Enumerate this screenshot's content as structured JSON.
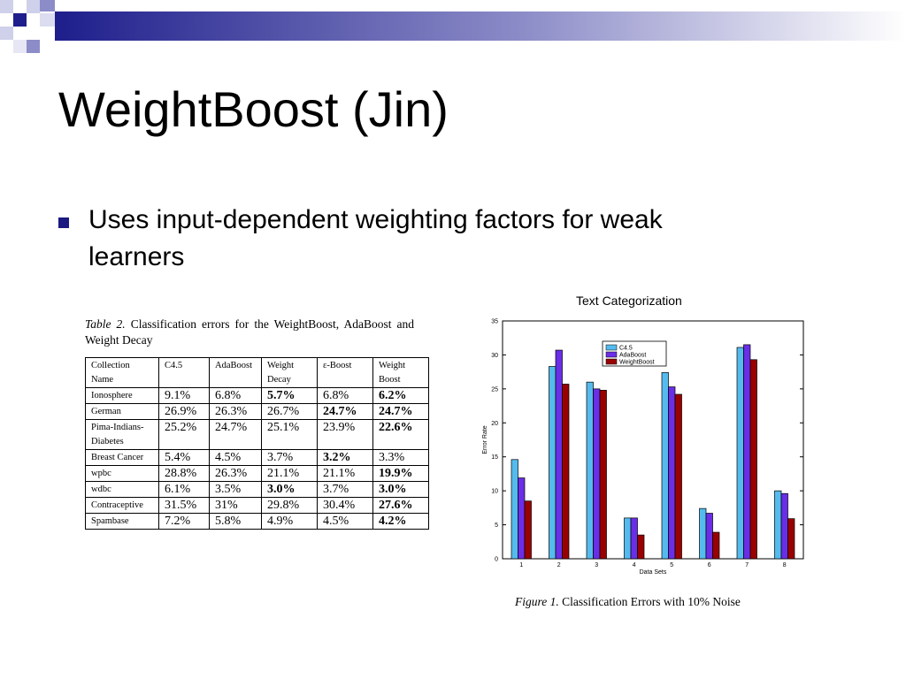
{
  "slide": {
    "title": "WeightBoost (Jin)",
    "bullet": "Uses input-dependent weighting factors for weak learners",
    "accent_color": "#1a1a80"
  },
  "table": {
    "caption_label": "Table 2.",
    "caption_text": "Classification errors for the WeightBoost, AdaBoost and Weight Decay",
    "headers": [
      "Collection Name",
      "C4.5",
      "AdaBoost",
      "Weight Decay",
      "ε-Boost",
      "Weight Boost"
    ],
    "rows": [
      {
        "name": "Ionosphere",
        "values": [
          "9.1%",
          "6.8%",
          "5.7%",
          "6.8%",
          "6.2%"
        ]
      },
      {
        "name": "German",
        "values": [
          "26.9%",
          "26.3%",
          "26.7%",
          "24.7%",
          "24.7%"
        ]
      },
      {
        "name": "Pima-Indians-Diabetes",
        "values": [
          "25.2%",
          "24.7%",
          "25.1%",
          "23.9%",
          "22.6%"
        ]
      },
      {
        "name": "Breast Cancer",
        "values": [
          "5.4%",
          "4.5%",
          "3.7%",
          "3.2%",
          "3.3%"
        ]
      },
      {
        "name": "wpbc",
        "values": [
          "28.8%",
          "26.3%",
          "21.1%",
          "21.1%",
          "19.9%"
        ]
      },
      {
        "name": "wdbc",
        "values": [
          "6.1%",
          "3.5%",
          "3.0%",
          "3.7%",
          "3.0%"
        ]
      },
      {
        "name": "Contraceptive",
        "values": [
          "31.5%",
          "31%",
          "29.8%",
          "30.4%",
          "27.6%"
        ]
      },
      {
        "name": "Spambase",
        "values": [
          "7.2%",
          "5.8%",
          "4.9%",
          "4.5%",
          "4.2%"
        ]
      }
    ]
  },
  "chart_label": "Text Categorization",
  "figure_caption": {
    "label": "Figure 1.",
    "text": "Classification Errors with 10% Noise"
  },
  "chart_data": {
    "type": "bar",
    "categories": [
      "1",
      "2",
      "3",
      "4",
      "5",
      "6",
      "7",
      "8"
    ],
    "series": [
      {
        "name": "C4.5",
        "color": "#55bbee",
        "values": [
          14.6,
          28.3,
          26.0,
          6.0,
          27.4,
          7.4,
          31.1,
          10.0
        ]
      },
      {
        "name": "AdaBoost",
        "color": "#6a2ee6",
        "values": [
          11.9,
          30.7,
          25.0,
          6.0,
          25.3,
          6.7,
          31.5,
          9.6
        ]
      },
      {
        "name": "WeightBoost",
        "color": "#990000",
        "values": [
          8.5,
          25.7,
          24.8,
          3.5,
          24.2,
          3.9,
          29.3,
          5.9
        ]
      }
    ],
    "xlabel": "Data Sets",
    "ylabel": "Error Rate",
    "ylim": [
      0,
      35
    ],
    "yticks": [
      0,
      5,
      10,
      15,
      20,
      25,
      30,
      35
    ],
    "grid": false,
    "legend": "top-left"
  }
}
